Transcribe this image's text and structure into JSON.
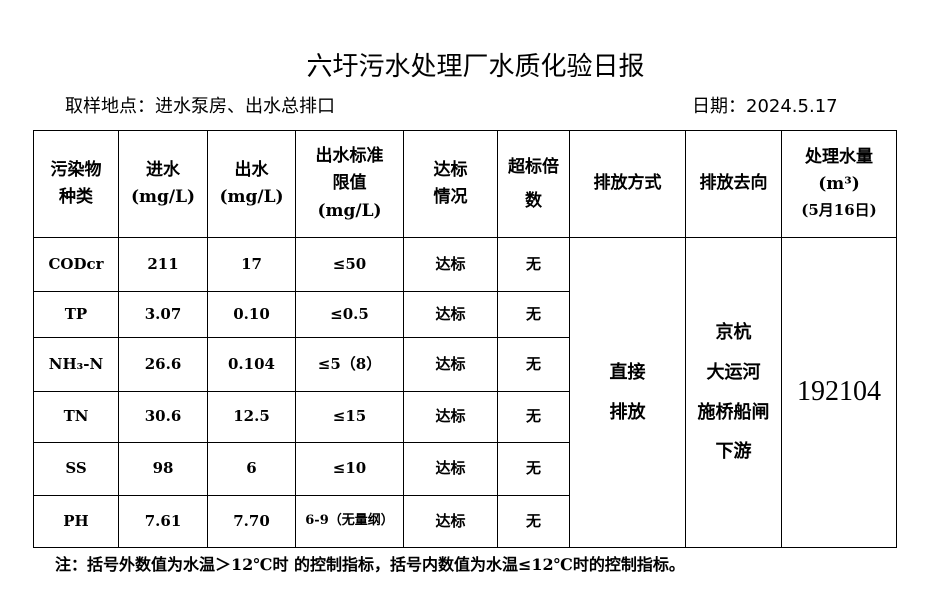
{
  "title": "六圩污水处理厂水质化验日报",
  "location": "取样地点：进水泵房、出水总排口",
  "date": "日期：2024.5.17",
  "headers": {
    "pollutant": [
      "污染物",
      "种类"
    ],
    "inflow": [
      "进水",
      "(mg/L)"
    ],
    "outflow": [
      "出水",
      "(mg/L)"
    ],
    "limit": [
      "出水标准",
      "限值",
      "(mg/L)"
    ],
    "compliance": [
      "达标",
      "情况"
    ],
    "exceed": [
      "超标倍",
      "数"
    ],
    "discharge_method": "排放方式",
    "discharge_dest": "排放去向",
    "volume": [
      "处理水量",
      "(m³)",
      "(5月16日)"
    ]
  },
  "rows": [
    {
      "name": "CODcr",
      "in": "211",
      "out": "17",
      "limit": "≤50",
      "status": "达标",
      "exceed": "无"
    },
    {
      "name": "TP",
      "in": "3.07",
      "out": "0.10",
      "limit": "≤0.5",
      "status": "达标",
      "exceed": "无"
    },
    {
      "name": "NH₃-N",
      "in": "26.6",
      "out": "0.104",
      "limit": "≤5（8）",
      "status": "达标",
      "exceed": "无"
    },
    {
      "name": "TN",
      "in": "30.6",
      "out": "12.5",
      "limit": "≤15",
      "status": "达标",
      "exceed": "无"
    },
    {
      "name": "SS",
      "in": "98",
      "out": "6",
      "limit": "≤10",
      "status": "达标",
      "exceed": "无"
    },
    {
      "name": "PH",
      "in": "7.61",
      "out": "7.70",
      "limit": "6-9（无量纲）",
      "status": "达标",
      "exceed": "无"
    }
  ],
  "discharge_method": [
    "直接",
    "排放"
  ],
  "discharge_dest": [
    "京杭",
    "大运河",
    "施桥船闸",
    "下游"
  ],
  "volume": "192104",
  "note": "注：括号外数值为水温＞12℃时 的控制指标，括号内数值为水温≤12℃时的控制指标。"
}
